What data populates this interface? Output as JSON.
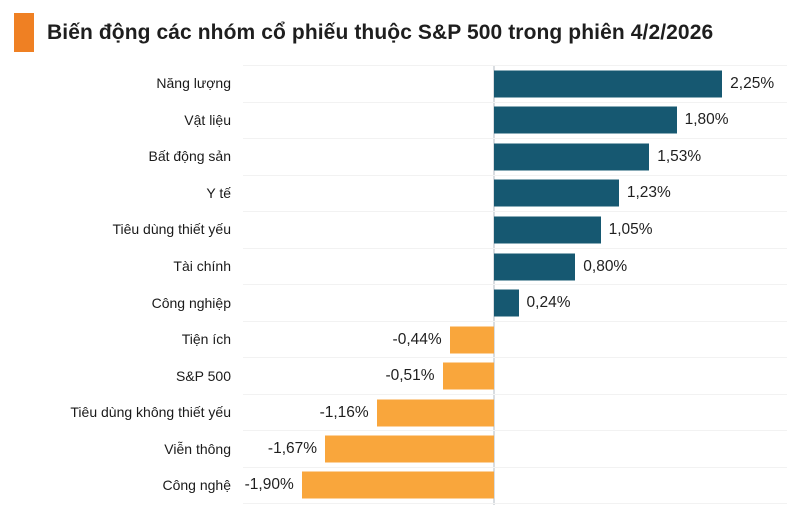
{
  "header": {
    "title": "Biến động các nhóm cổ phiếu thuộc S&P 500 trong phiên 4/2/2026"
  },
  "style": {
    "accent_color": "#ef8023",
    "positive_color": "#165871",
    "negative_color": "#f9a63c",
    "gridline_color": "#f2f2f2",
    "axis_color": "#d9dde1"
  },
  "chart_data": {
    "type": "bar",
    "orientation": "horizontal",
    "title": "Biến động các nhóm cổ phiếu thuộc S&P 500 trong phiên 4/2/2026",
    "xlabel": "",
    "ylabel": "",
    "unit": "%",
    "decimal_separator": ",",
    "xlim": [
      -2.48,
      2.89
    ],
    "grid": true,
    "legend": false,
    "categories": [
      "Năng lượng",
      "Vật liệu",
      "Bất động sản",
      "Y tế",
      "Tiêu dùng thiết yếu",
      "Tài chính",
      "Công nghiệp",
      "Tiện ích",
      "S&P 500",
      "Tiêu dùng không thiết yếu",
      "Viễn thông",
      "Công nghệ"
    ],
    "values": [
      2.25,
      1.8,
      1.53,
      1.23,
      1.05,
      0.8,
      0.24,
      -0.44,
      -0.51,
      -1.16,
      -1.67,
      -1.9
    ],
    "value_labels": [
      "2,25%",
      "1,80%",
      "1,53%",
      "1,23%",
      "1,05%",
      "0,80%",
      "0,24%",
      "-0,44%",
      "-0,51%",
      "-1,16%",
      "-1,67%",
      "-1,90%"
    ],
    "positive_color": "#165871",
    "negative_color": "#f9a63c"
  }
}
